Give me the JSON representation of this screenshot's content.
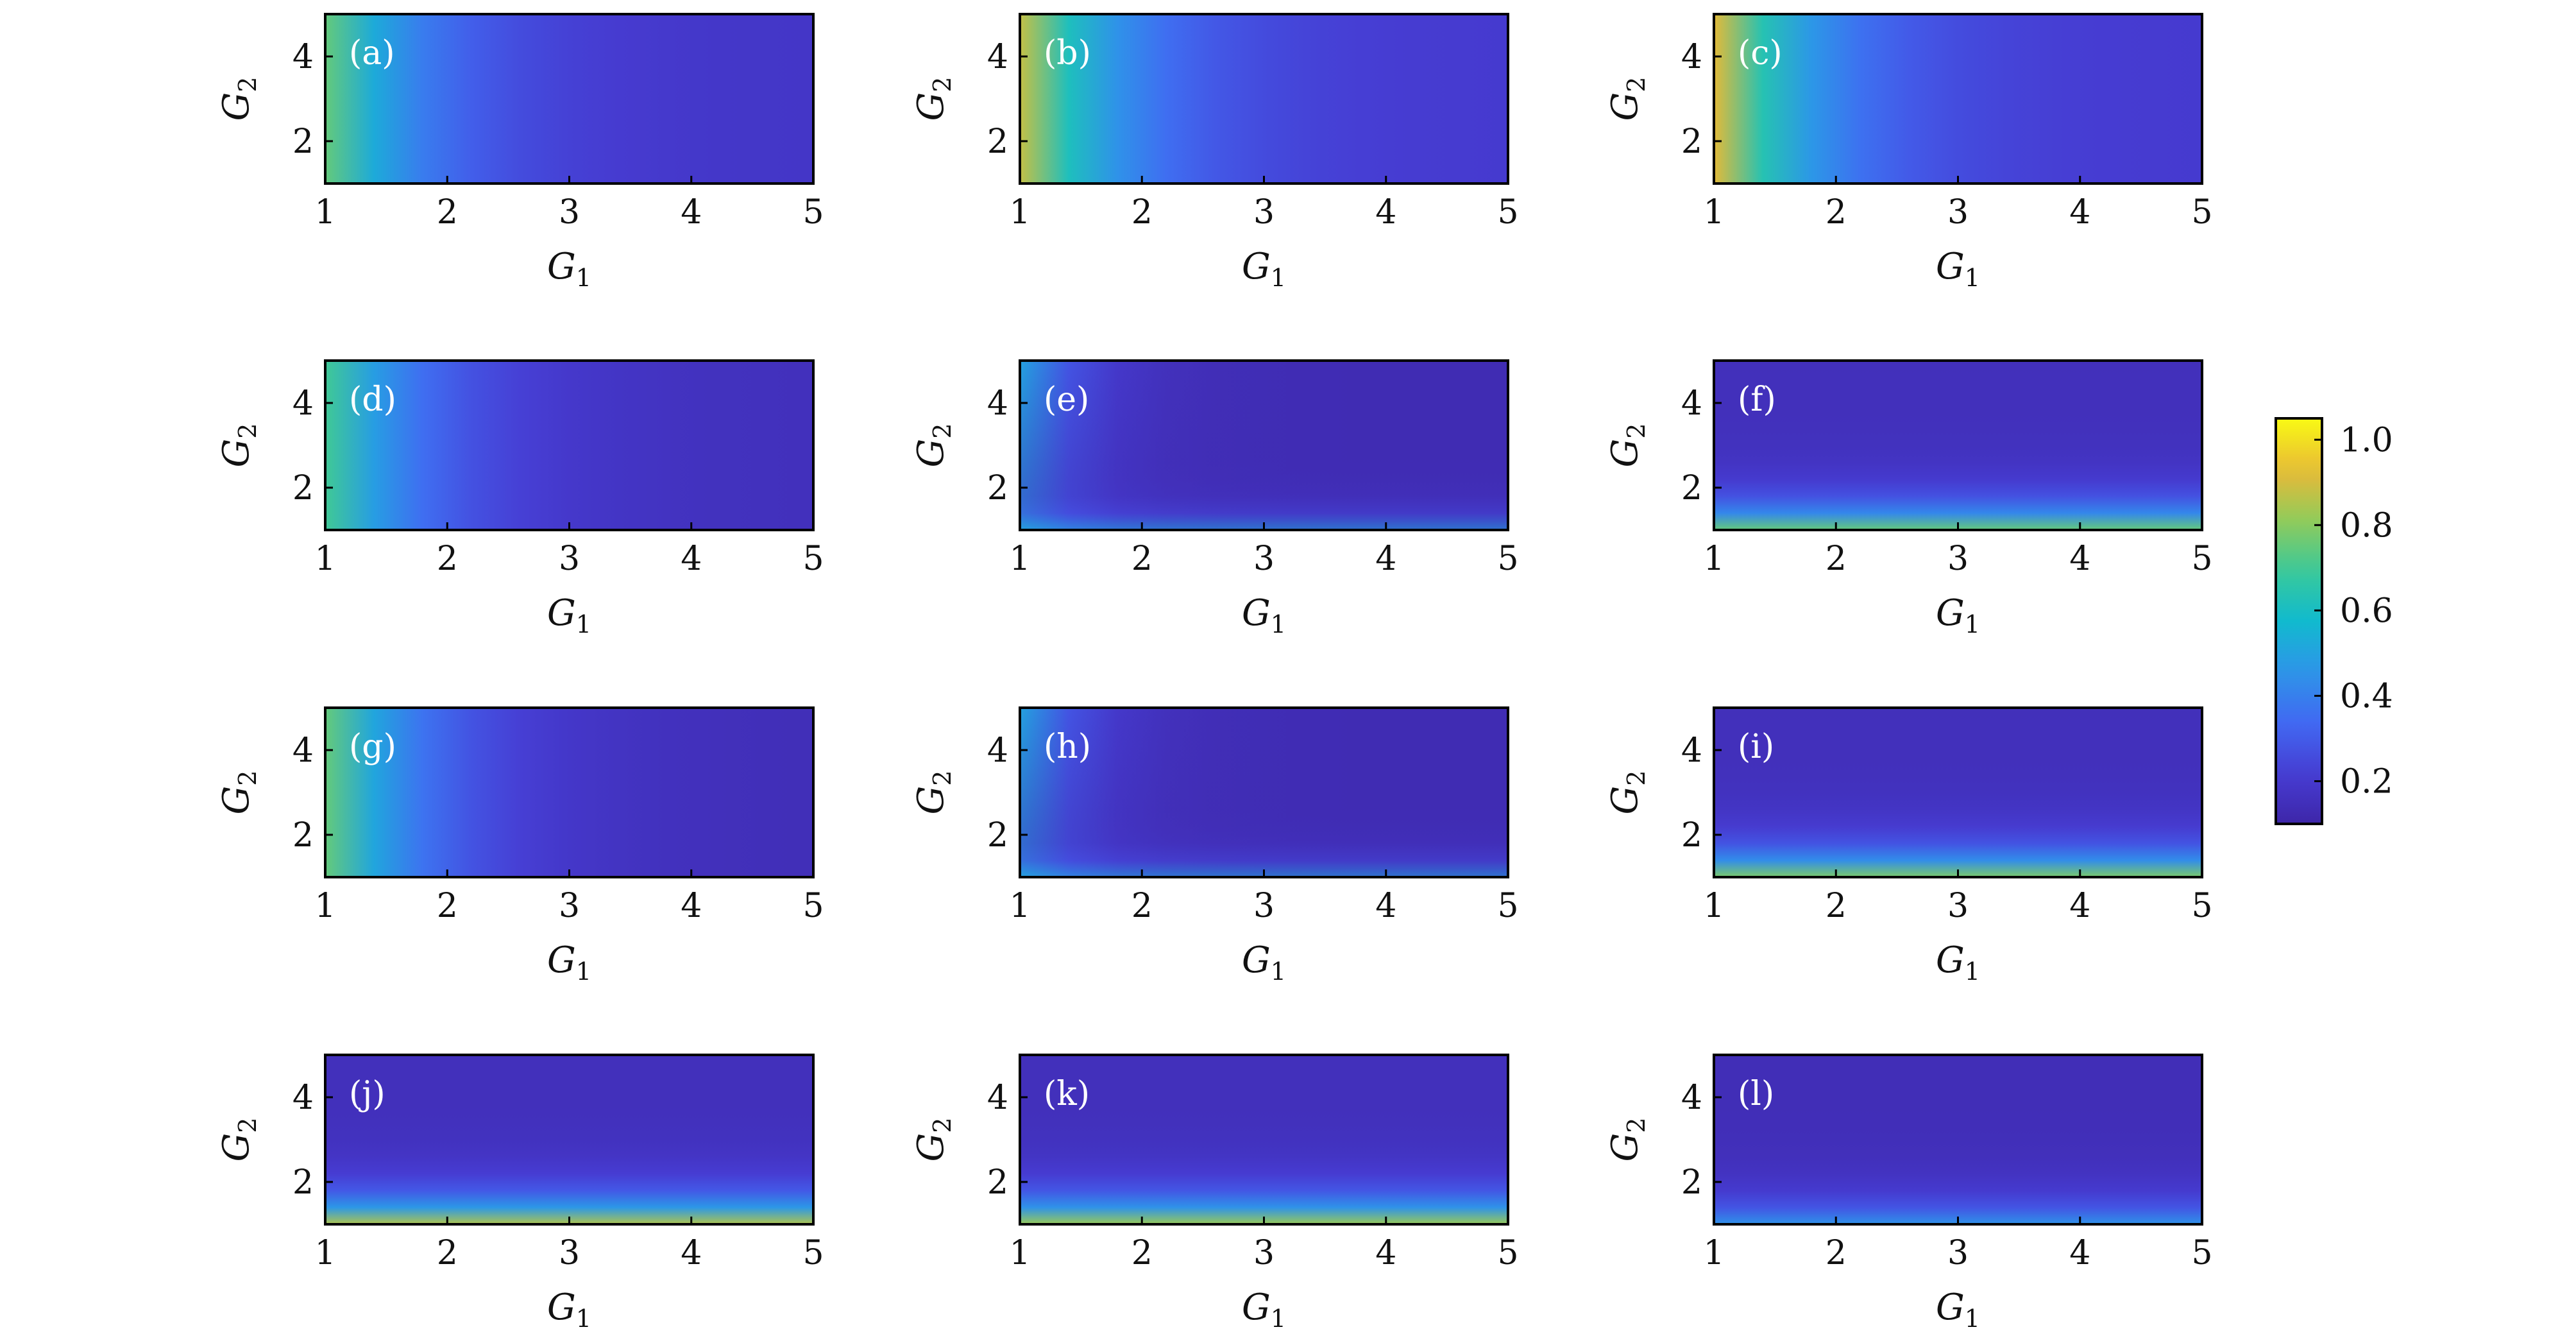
{
  "chart_data": {
    "type": "heatmap",
    "layout": "4 rows x 3 columns grid of heatmap panels sharing one colorbar on the right",
    "x_axis": {
      "label": "G",
      "label_sub": "1",
      "range": [
        1,
        5
      ],
      "ticks": [
        "1",
        "2",
        "3",
        "4",
        "5"
      ]
    },
    "y_axis": {
      "label": "G",
      "label_sub": "2",
      "range": [
        1,
        5
      ],
      "ticks": [
        "2",
        "4"
      ]
    },
    "colorbar": {
      "range": [
        0.1,
        1.05
      ],
      "ticks": [
        "0.2",
        "0.4",
        "0.6",
        "0.8",
        "1.0"
      ],
      "tick_values": [
        0.2,
        0.4,
        0.6,
        0.8,
        1.0
      ],
      "colormap": "parula"
    },
    "panels": [
      {
        "label": "(a)",
        "pattern": "left",
        "edge_value": 0.75,
        "min_value": 0.18
      },
      {
        "label": "(b)",
        "pattern": "left",
        "edge_value": 0.88,
        "min_value": 0.2
      },
      {
        "label": "(c)",
        "pattern": "left",
        "edge_value": 0.92,
        "min_value": 0.2
      },
      {
        "label": "(d)",
        "pattern": "left",
        "edge_value": 0.7,
        "min_value": 0.15
      },
      {
        "label": "(e)",
        "pattern": "corner",
        "edge_value": 0.5,
        "min_value": 0.13
      },
      {
        "label": "(f)",
        "pattern": "bottom",
        "edge_value": 0.75,
        "min_value": 0.15
      },
      {
        "label": "(g)",
        "pattern": "left",
        "edge_value": 0.75,
        "min_value": 0.14
      },
      {
        "label": "(h)",
        "pattern": "corner",
        "edge_value": 0.5,
        "min_value": 0.13
      },
      {
        "label": "(i)",
        "pattern": "bottom",
        "edge_value": 0.78,
        "min_value": 0.15
      },
      {
        "label": "(j)",
        "pattern": "bottom",
        "edge_value": 0.85,
        "min_value": 0.15
      },
      {
        "label": "(k)",
        "pattern": "bottom",
        "edge_value": 0.82,
        "min_value": 0.15
      },
      {
        "label": "(l)",
        "pattern": "bottom",
        "edge_value": 0.45,
        "min_value": 0.14
      }
    ]
  }
}
